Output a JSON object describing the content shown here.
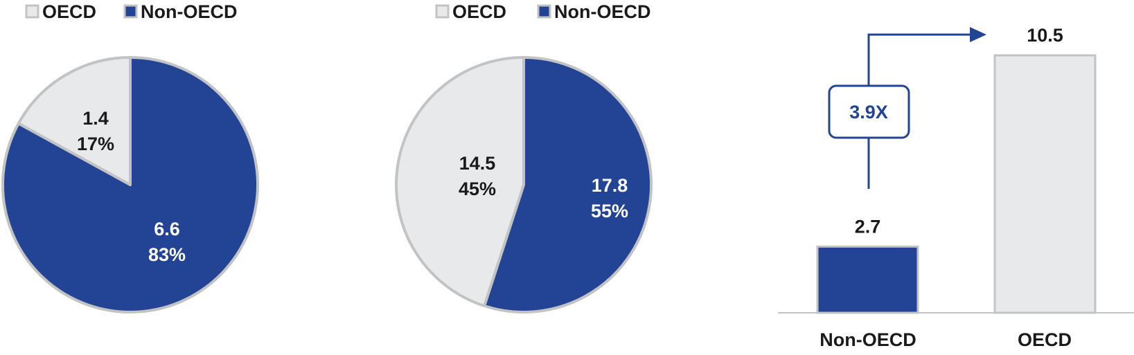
{
  "colors": {
    "oecd": "#E8E9EB",
    "non_oecd": "#234394",
    "outline": "#C2C3C5",
    "text_dark": "#1a1a1a",
    "text_light": "#ffffff",
    "annotation": "#234394"
  },
  "chart_data": [
    {
      "type": "pie",
      "legend": [
        "OECD",
        "Non-OECD"
      ],
      "legend_position": "top-left",
      "slices": [
        {
          "name": "OECD",
          "value": 1.4,
          "value_label": "1.4",
          "percent_label": "17%",
          "share": 0.17
        },
        {
          "name": "Non-OECD",
          "value": 6.6,
          "value_label": "6.6",
          "percent_label": "83%",
          "share": 0.83
        }
      ]
    },
    {
      "type": "pie",
      "legend": [
        "OECD",
        "Non-OECD"
      ],
      "legend_position": "top-left",
      "slices": [
        {
          "name": "OECD",
          "value": 14.5,
          "value_label": "14.5",
          "percent_label": "45%",
          "share": 0.45
        },
        {
          "name": "Non-OECD",
          "value": 17.8,
          "value_label": "17.8",
          "percent_label": "55%",
          "share": 0.55
        }
      ]
    },
    {
      "type": "bar",
      "categories": [
        "Non-OECD",
        "OECD"
      ],
      "values": [
        2.7,
        10.5
      ],
      "value_labels": [
        "2.7",
        "10.5"
      ],
      "ylim": [
        0,
        11
      ],
      "grid": false,
      "annotation": {
        "text": "3.9X",
        "from": "Non-OECD",
        "to": "OECD"
      }
    }
  ]
}
